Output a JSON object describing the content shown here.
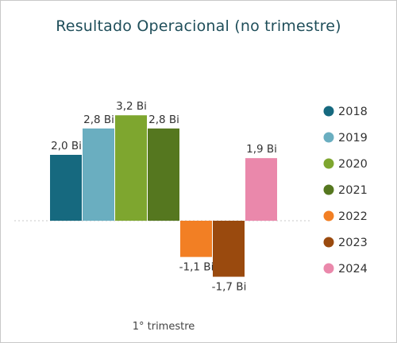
{
  "chart_data": {
    "type": "bar",
    "title": "Resultado Operacional (no trimestre)",
    "categories": [
      "1° trimestre"
    ],
    "series": [
      {
        "name": "2018",
        "values": [
          2.0
        ],
        "label": "2,0 Bi",
        "color": "#16697f"
      },
      {
        "name": "2019",
        "values": [
          2.8
        ],
        "label": "2,8 Bi",
        "color": "#6aaec0"
      },
      {
        "name": "2020",
        "values": [
          3.2
        ],
        "label": "3,2 Bi",
        "color": "#7ea62f"
      },
      {
        "name": "2021",
        "values": [
          2.8
        ],
        "label": "2,8 Bi",
        "color": "#55771f"
      },
      {
        "name": "2022",
        "values": [
          -1.1
        ],
        "label": "-1,1 Bi",
        "color": "#f27f24"
      },
      {
        "name": "2023",
        "values": [
          -1.7
        ],
        "label": "-1,7 Bi",
        "color": "#9a4a0e"
      },
      {
        "name": "2024",
        "values": [
          1.9
        ],
        "label": "1,9 Bi",
        "color": "#ea88ab"
      }
    ],
    "unit": "Bi",
    "ylim": [
      -1.7,
      3.2
    ],
    "legend": "right",
    "grid": false
  }
}
